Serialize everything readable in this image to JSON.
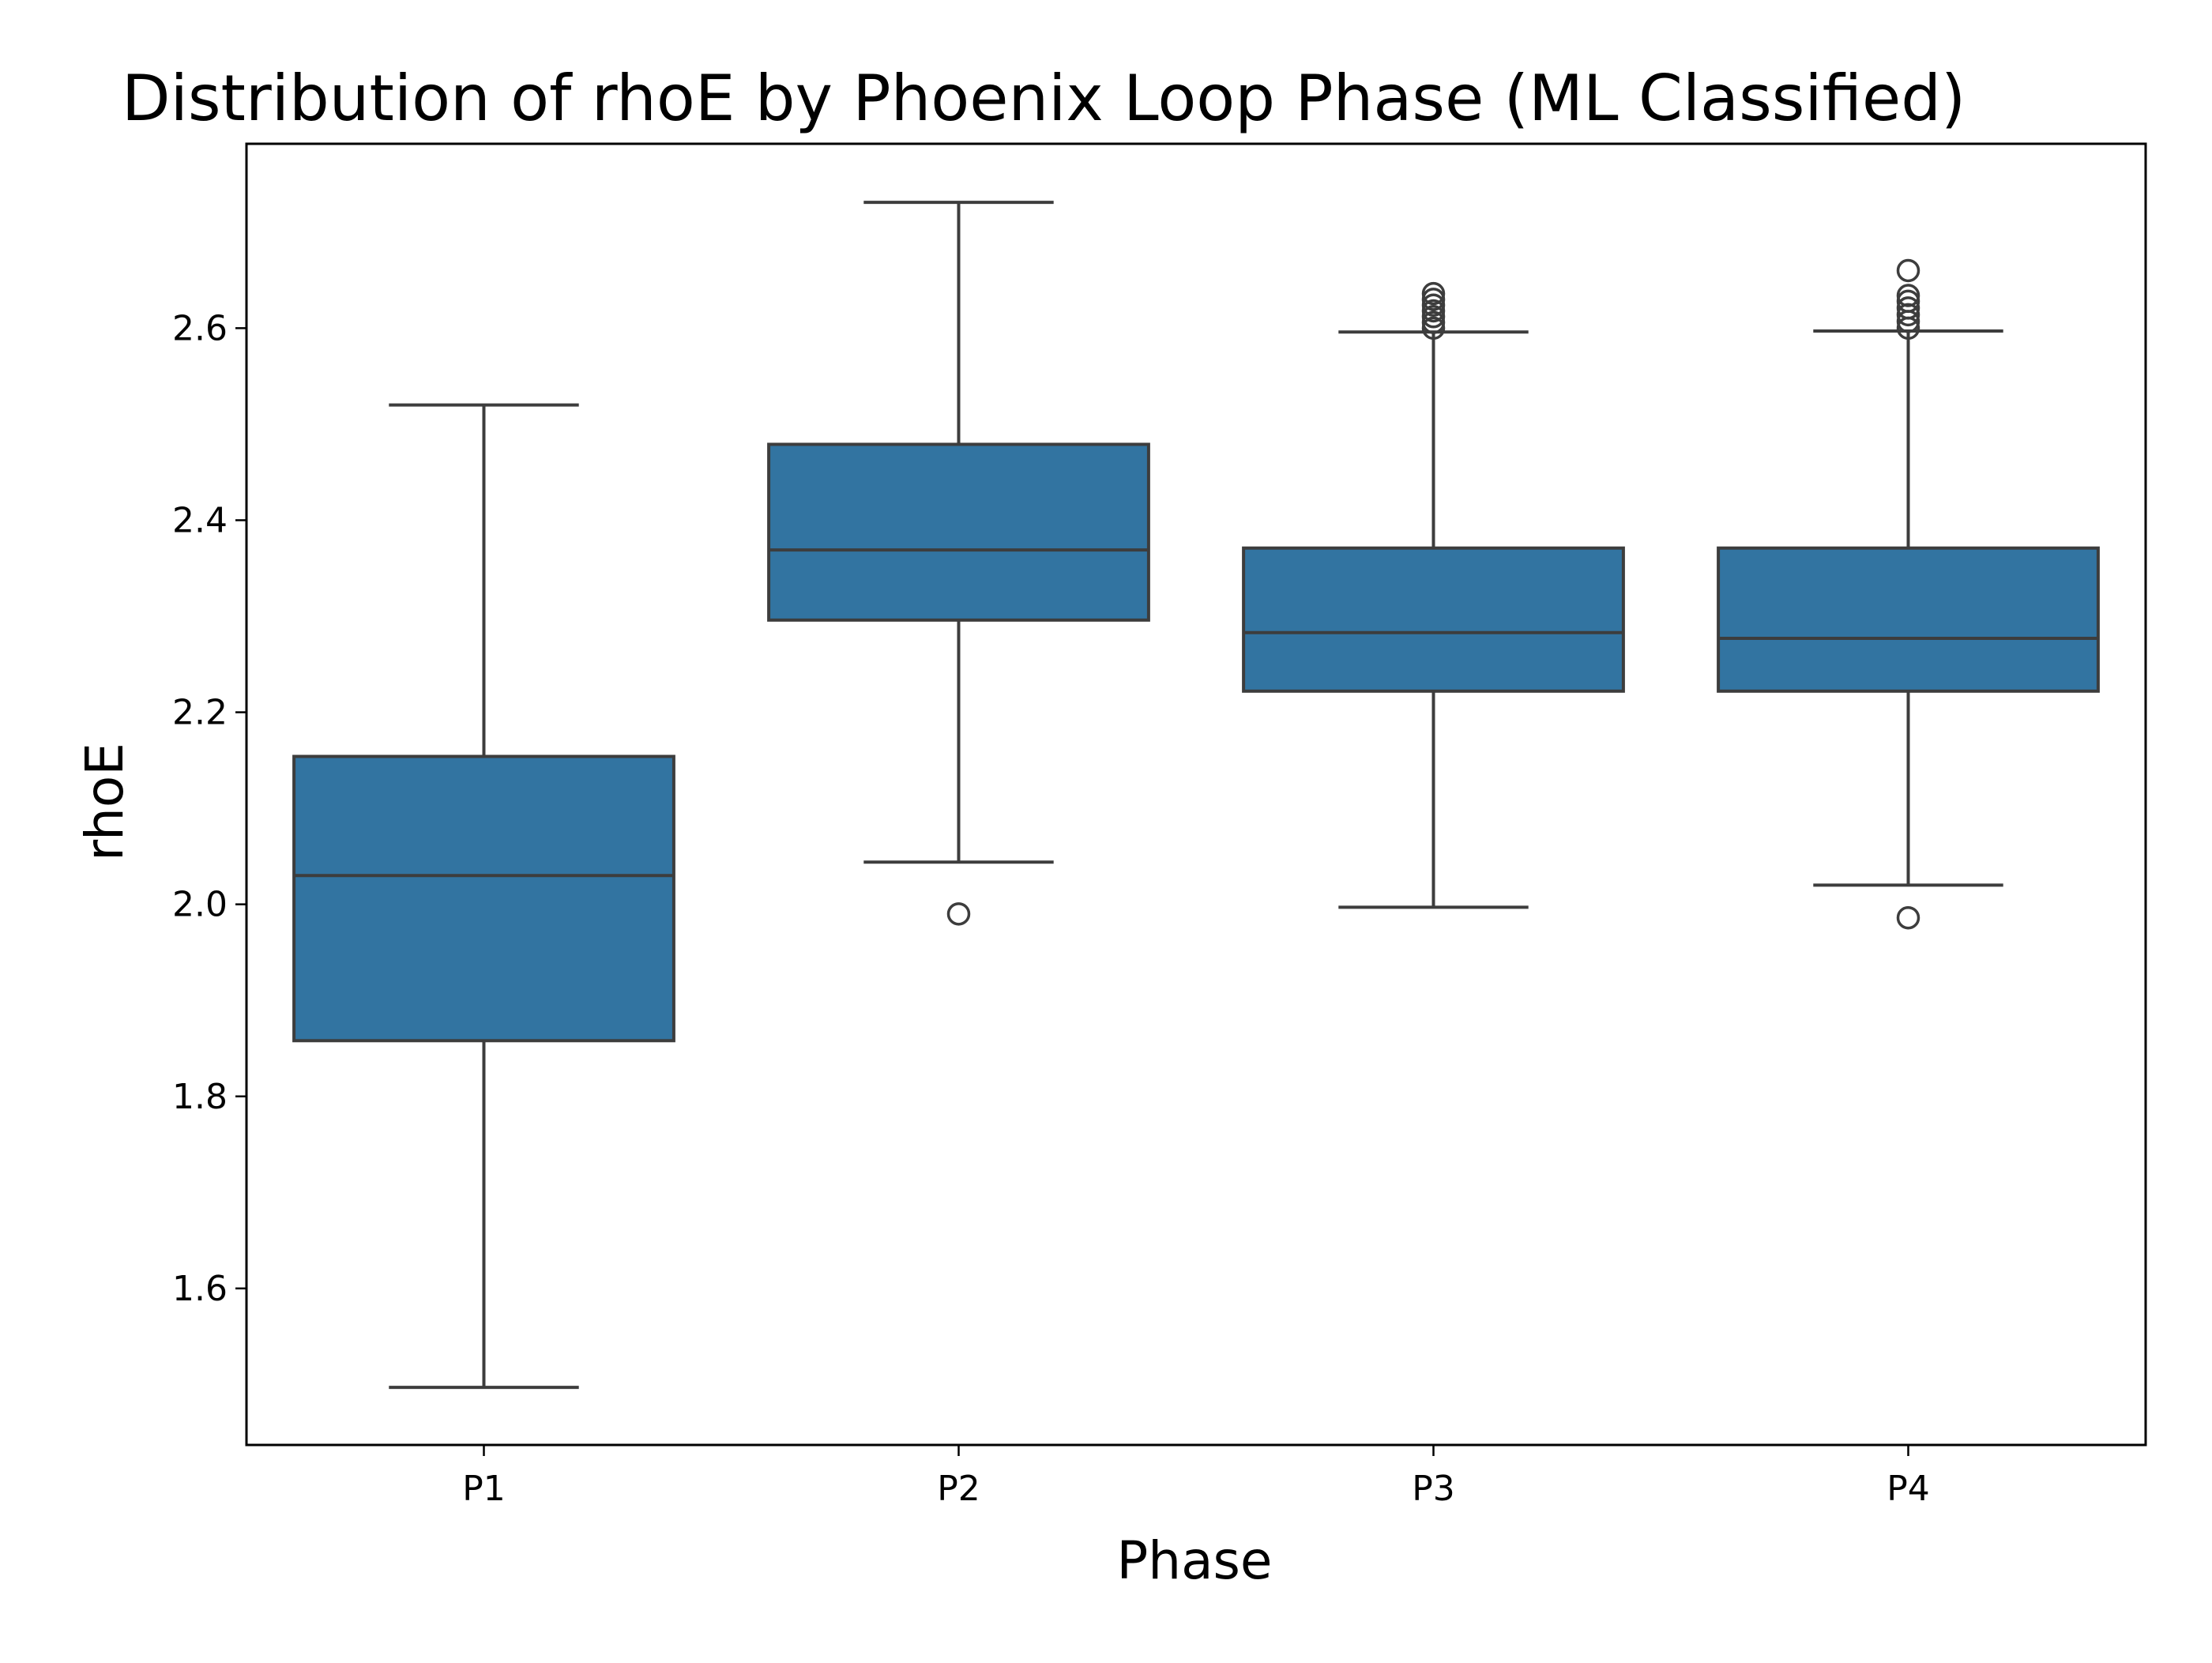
{
  "chart_data": {
    "type": "box",
    "title": "Distribution of rhoE by Phoenix Loop Phase (ML Classified)",
    "xlabel": "Phase",
    "ylabel": "rhoE",
    "categories": [
      "P1",
      "P2",
      "P3",
      "P4"
    ],
    "ylim": [
      1.437,
      2.792
    ],
    "yticks": [
      1.6,
      1.8,
      2.0,
      2.2,
      2.4,
      2.6
    ],
    "grid": false,
    "legend": "none",
    "box_color": "#3274a1",
    "edge_color": "#3d3d3d",
    "boxes": [
      {
        "category": "P1",
        "whisker_low": 1.497,
        "q1": 1.858,
        "median": 2.03,
        "q3": 2.154,
        "whisker_high": 2.52,
        "outliers": []
      },
      {
        "category": "P2",
        "whisker_low": 2.044,
        "q1": 2.296,
        "median": 2.369,
        "q3": 2.479,
        "whisker_high": 2.731,
        "outliers": [
          1.99
        ]
      },
      {
        "category": "P3",
        "whisker_low": 1.997,
        "q1": 2.222,
        "median": 2.283,
        "q3": 2.371,
        "whisker_high": 2.596,
        "outliers": [
          2.6,
          2.606,
          2.612,
          2.618,
          2.624,
          2.63,
          2.636
        ]
      },
      {
        "category": "P4",
        "whisker_low": 2.02,
        "q1": 2.222,
        "median": 2.277,
        "q3": 2.371,
        "whisker_high": 2.597,
        "outliers": [
          1.986,
          2.6,
          2.607,
          2.614,
          2.621,
          2.628,
          2.634,
          2.66
        ]
      }
    ]
  }
}
